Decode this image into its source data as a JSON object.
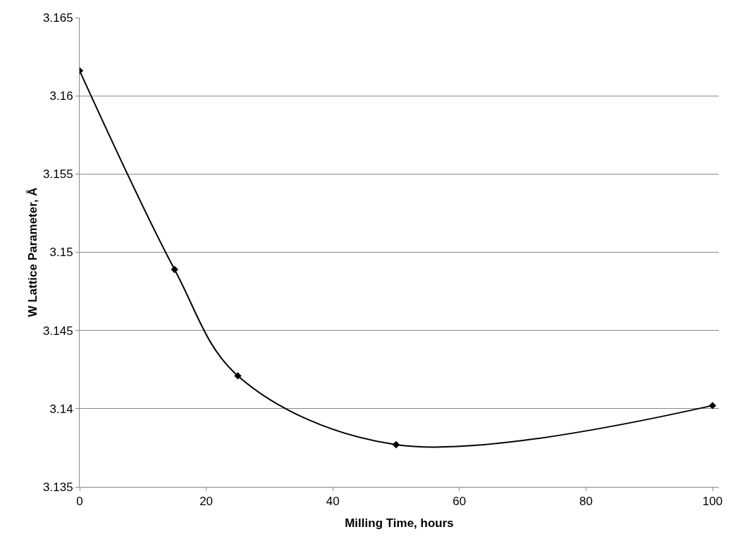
{
  "chart_data": {
    "type": "line",
    "xlabel": "Milling Time, hours",
    "ylabel": "W Lattice Parameter, Å",
    "x": [
      0,
      15,
      25,
      50,
      100
    ],
    "series": [
      {
        "color": "#000000",
        "values": [
          3.1616,
          3.1489,
          3.1421,
          3.1377,
          3.1402
        ]
      }
    ],
    "xlim": [
      0,
      101
    ],
    "xticks": [
      0,
      20,
      40,
      60,
      80,
      100
    ],
    "ylim": [
      3.135,
      3.165
    ],
    "yticks": [
      3.135,
      3.14,
      3.145,
      3.15,
      3.155,
      3.16,
      3.165
    ],
    "grid": "y",
    "legend": false,
    "marker": "diamond",
    "line_style": "solid"
  }
}
